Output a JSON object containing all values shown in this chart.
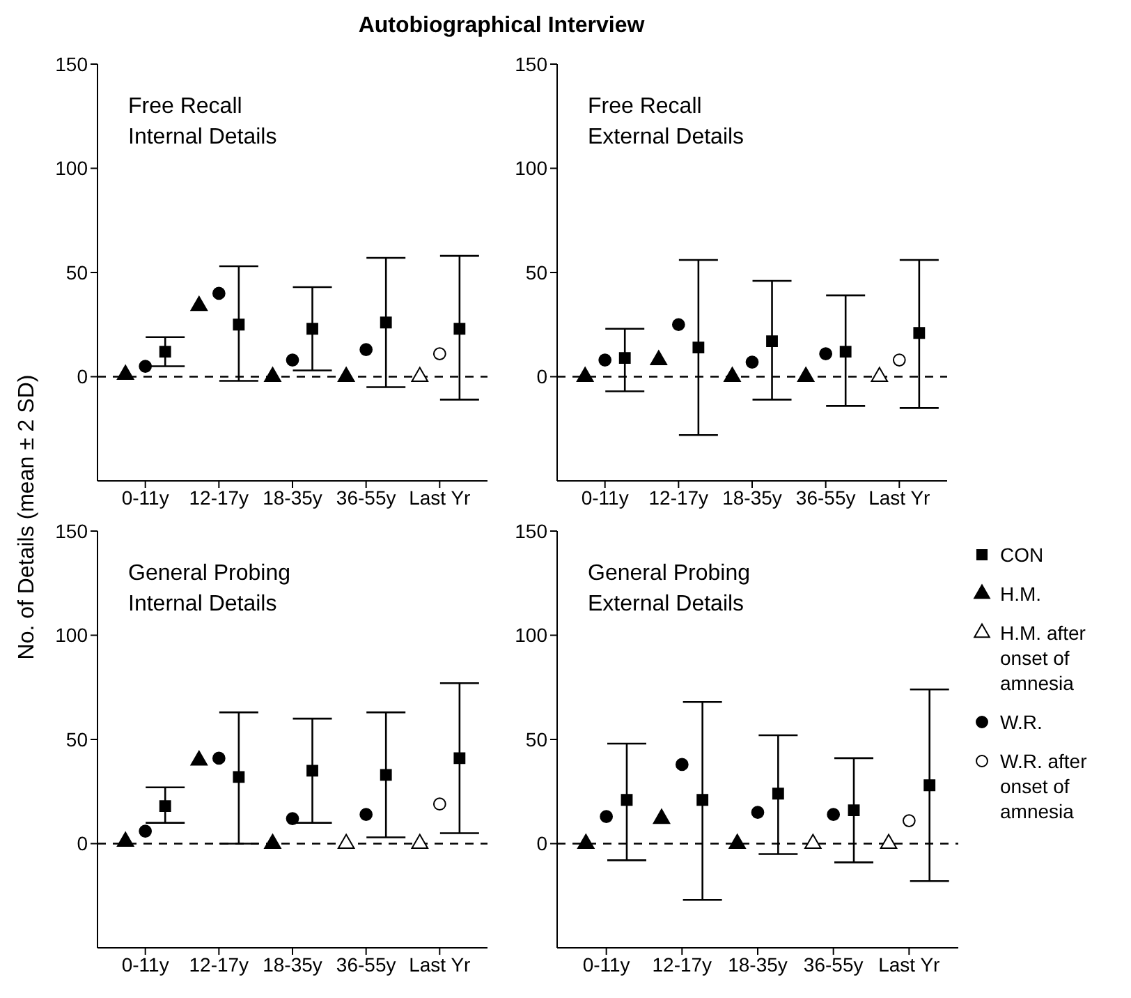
{
  "chart_data": [
    {
      "type": "scatter",
      "title": "Autobiographical Interview",
      "subtitle": "Free Recall\nInternal Details",
      "ylabel": "No. of Details (mean ± 2 SD)",
      "categories": [
        "0-11y",
        "12-17y",
        "18-35y",
        "36-55y",
        "Last Yr"
      ],
      "ylim": [
        -50,
        150
      ],
      "yticks": [
        0,
        50,
        100,
        150
      ],
      "ref_lines": [
        {
          "axis": "y",
          "value": 0,
          "line_style": "dashed",
          "color": "#000000"
        }
      ],
      "series": [
        {
          "color": "#000000",
          "marker": "square",
          "values": [
            12,
            25,
            23,
            26,
            23
          ],
          "errors": [
            [
              5,
              19
            ],
            [
              -2,
              53
            ],
            [
              3,
              43
            ],
            [
              -5,
              57
            ],
            [
              -11,
              58
            ]
          ]
        },
        {
          "color": "#000000",
          "marker": "triangle",
          "values": [
            1,
            34,
            0,
            0,
            null
          ]
        },
        {
          "color": "#ffffff",
          "marker": "triangle",
          "values": [
            null,
            null,
            null,
            null,
            0
          ]
        },
        {
          "color": "#000000",
          "marker": "circle",
          "values": [
            5,
            40,
            8,
            13,
            null
          ]
        },
        {
          "color": "#ffffff",
          "marker": "circle",
          "values": [
            null,
            null,
            null,
            null,
            11
          ]
        }
      ]
    },
    {
      "type": "scatter",
      "subtitle": "Free Recall\nExternal Details",
      "categories": [
        "0-11y",
        "12-17y",
        "18-35y",
        "36-55y",
        "Last Yr"
      ],
      "ylim": [
        -50,
        150
      ],
      "yticks": [
        0,
        50,
        100,
        150
      ],
      "ref_lines": [
        {
          "axis": "y",
          "value": 0,
          "line_style": "dashed",
          "color": "#000000"
        }
      ],
      "series": [
        {
          "color": "#000000",
          "marker": "square",
          "values": [
            9,
            14,
            17,
            12,
            21
          ],
          "errors": [
            [
              -7,
              23
            ],
            [
              -28,
              56
            ],
            [
              -11,
              46
            ],
            [
              -14,
              39
            ],
            [
              -15,
              56
            ]
          ]
        },
        {
          "color": "#000000",
          "marker": "triangle",
          "values": [
            0,
            8,
            0,
            0,
            null
          ]
        },
        {
          "color": "#ffffff",
          "marker": "triangle",
          "values": [
            null,
            null,
            null,
            null,
            0
          ]
        },
        {
          "color": "#000000",
          "marker": "circle",
          "values": [
            8,
            25,
            7,
            11,
            null
          ]
        },
        {
          "color": "#ffffff",
          "marker": "circle",
          "values": [
            null,
            null,
            null,
            null,
            8
          ]
        }
      ]
    },
    {
      "type": "scatter",
      "subtitle": "General Probing\nInternal Details",
      "categories": [
        "0-11y",
        "12-17y",
        "18-35y",
        "36-55y",
        "Last Yr"
      ],
      "ylim": [
        -50,
        150
      ],
      "yticks": [
        0,
        50,
        100,
        150
      ],
      "ref_lines": [
        {
          "axis": "y",
          "value": 0,
          "line_style": "dashed",
          "color": "#000000"
        }
      ],
      "series": [
        {
          "color": "#000000",
          "marker": "square",
          "values": [
            18,
            32,
            35,
            33,
            41
          ],
          "errors": [
            [
              10,
              27
            ],
            [
              0,
              63
            ],
            [
              10,
              60
            ],
            [
              3,
              63
            ],
            [
              5,
              77
            ]
          ]
        },
        {
          "color": "#000000",
          "marker": "triangle",
          "values": [
            1,
            40,
            0,
            null,
            null
          ]
        },
        {
          "color": "#ffffff",
          "marker": "triangle",
          "values": [
            null,
            null,
            null,
            0,
            0
          ]
        },
        {
          "color": "#000000",
          "marker": "circle",
          "values": [
            6,
            41,
            12,
            14,
            null
          ]
        },
        {
          "color": "#ffffff",
          "marker": "circle",
          "values": [
            null,
            null,
            null,
            null,
            19
          ]
        }
      ]
    },
    {
      "type": "scatter",
      "subtitle": "General Probing\nExternal Details",
      "categories": [
        "0-11y",
        "12-17y",
        "18-35y",
        "36-55y",
        "Last Yr"
      ],
      "ylim": [
        -50,
        150
      ],
      "yticks": [
        0,
        50,
        100,
        150
      ],
      "legend": "right",
      "ref_lines": [
        {
          "axis": "y",
          "value": 0,
          "line_style": "dashed",
          "color": "#000000"
        }
      ],
      "series": [
        {
          "name": "CON",
          "color": "#000000",
          "marker": "square",
          "values": [
            21,
            21,
            24,
            16,
            28
          ],
          "errors": [
            [
              -8,
              48
            ],
            [
              -27,
              68
            ],
            [
              -5,
              52
            ],
            [
              -9,
              41
            ],
            [
              -18,
              74
            ]
          ]
        },
        {
          "name": "H.M.",
          "color": "#000000",
          "marker": "triangle",
          "values": [
            0,
            12,
            0,
            null,
            null
          ]
        },
        {
          "name": "H.M. after onset of amnesia",
          "color": "#ffffff",
          "marker": "triangle",
          "values": [
            null,
            null,
            null,
            0,
            0
          ]
        },
        {
          "name": "W.R.",
          "color": "#000000",
          "marker": "circle",
          "values": [
            13,
            38,
            15,
            14,
            null
          ]
        },
        {
          "name": "W.R. after onset of amnesia",
          "color": "#ffffff",
          "marker": "circle",
          "values": [
            null,
            null,
            null,
            null,
            11
          ]
        }
      ]
    }
  ]
}
